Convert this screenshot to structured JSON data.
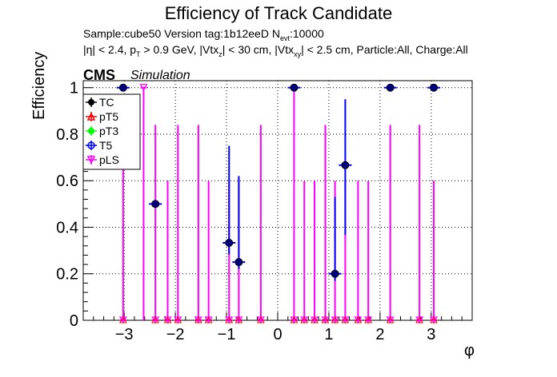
{
  "header": {
    "title": "Efficiency of Track Candidate",
    "sample_line": "Sample:cube50   Version tag:1b12eeD  N",
    "sample_sub": "evt",
    "sample_tail": ":10000",
    "cuts": {
      "p1": "|η| < 2.4, p",
      "s1": "T",
      "p2": " > 0.9 GeV, |Vtx",
      "s2": "z",
      "p3": "| < 30 cm, |Vtx",
      "s3": "xy",
      "p4": "| < 2.5 cm, Particle:All, Charge:All"
    },
    "cms": "CMS",
    "simulation": "Simulation"
  },
  "colors": {
    "TC": "#000000",
    "pT5": "#ff0000",
    "pT3": "#00ff00",
    "T5": "#0000ff",
    "pLS": "#ff00ff",
    "T5_marker": "#000080"
  },
  "chart_data": {
    "type": "scatter",
    "xlabel": "φ",
    "ylabel": "Efficiency",
    "xlim": [
      -3.8,
      3.8
    ],
    "ylim": [
      0,
      1.03
    ],
    "grid": true,
    "legend_position": "top-left",
    "x_ticks": [
      -3,
      -2,
      -1,
      0,
      1,
      2,
      3
    ],
    "x_tick_labels": [
      "−3",
      "−2",
      "−1",
      "0",
      "1",
      "2",
      "3"
    ],
    "y_ticks": [
      0,
      0.2,
      0.4,
      0.6,
      0.8,
      1
    ],
    "y_tick_labels": [
      "0",
      "0.2",
      "0.4",
      "0.6",
      "0.8",
      "1"
    ],
    "legend": [
      {
        "name": "TC",
        "marker": "filled-circle"
      },
      {
        "name": "pT5",
        "marker": "open-triangle"
      },
      {
        "name": "pT3",
        "marker": "filled-circle"
      },
      {
        "name": "T5",
        "marker": "open-circle"
      },
      {
        "name": "pLS",
        "marker": "triangle-down"
      }
    ],
    "series": [
      {
        "name": "TC",
        "points": [
          {
            "x": -3.02,
            "y": 1.0,
            "lo": 0.0,
            "hi": 1.0
          },
          {
            "x": -2.39,
            "y": 0.5,
            "lo": 0.0,
            "hi": 0.5
          },
          {
            "x": -0.95,
            "y": 0.333,
            "lo": 0.05,
            "hi": 0.75
          },
          {
            "x": -0.76,
            "y": 0.25,
            "lo": 0.03,
            "hi": 0.62
          },
          {
            "x": 0.32,
            "y": 1.0,
            "lo": 0.0,
            "hi": 1.0
          },
          {
            "x": 1.12,
            "y": 0.2,
            "lo": 0.03,
            "hi": 0.53
          },
          {
            "x": 1.32,
            "y": 0.667,
            "lo": 0.3,
            "hi": 0.95
          },
          {
            "x": 2.2,
            "y": 1.0,
            "lo": 0.0,
            "hi": 1.0
          },
          {
            "x": 3.05,
            "y": 1.0,
            "lo": 0.0,
            "hi": 1.0
          }
        ]
      },
      {
        "name": "pLS",
        "points": [
          {
            "x": -3.02,
            "y": 0.0,
            "lo": 0.0,
            "hi": 0.84
          },
          {
            "x": -2.62,
            "y": 1.0,
            "lo": 0.0,
            "hi": 1.0
          },
          {
            "x": -2.39,
            "y": 0.0,
            "lo": 0.0,
            "hi": 0.84
          },
          {
            "x": -2.15,
            "y": 0.0,
            "lo": 0.0,
            "hi": 0.6
          },
          {
            "x": -1.95,
            "y": 0.0,
            "lo": 0.0,
            "hi": 0.84
          },
          {
            "x": -1.55,
            "y": 0.0,
            "lo": 0.0,
            "hi": 0.84
          },
          {
            "x": -1.35,
            "y": 0.0,
            "lo": 0.0,
            "hi": 0.6
          },
          {
            "x": -0.95,
            "y": 0.0,
            "lo": 0.0,
            "hi": 0.6
          },
          {
            "x": -0.76,
            "y": 0.0,
            "lo": 0.0,
            "hi": 0.6
          },
          {
            "x": -0.33,
            "y": 0.0,
            "lo": 0.0,
            "hi": 0.84
          },
          {
            "x": 0.32,
            "y": 0.0,
            "lo": 0.0,
            "hi": 1.0
          },
          {
            "x": 0.52,
            "y": 0.0,
            "lo": 0.0,
            "hi": 0.6
          },
          {
            "x": 0.72,
            "y": 0.0,
            "lo": 0.0,
            "hi": 0.6
          },
          {
            "x": 0.93,
            "y": 0.0,
            "lo": 0.0,
            "hi": 0.84
          },
          {
            "x": 1.12,
            "y": 0.0,
            "lo": 0.0,
            "hi": 0.6
          },
          {
            "x": 1.32,
            "y": 0.0,
            "lo": 0.0,
            "hi": 0.6
          },
          {
            "x": 1.57,
            "y": 0.0,
            "lo": 0.0,
            "hi": 0.6
          },
          {
            "x": 1.77,
            "y": 0.0,
            "lo": 0.0,
            "hi": 0.6
          },
          {
            "x": 2.2,
            "y": 0.0,
            "lo": 0.0,
            "hi": 0.84
          },
          {
            "x": 2.77,
            "y": 0.0,
            "lo": 0.0,
            "hi": 0.84
          },
          {
            "x": 3.05,
            "y": 0.0,
            "lo": 0.0,
            "hi": 0.6
          }
        ]
      }
    ]
  }
}
